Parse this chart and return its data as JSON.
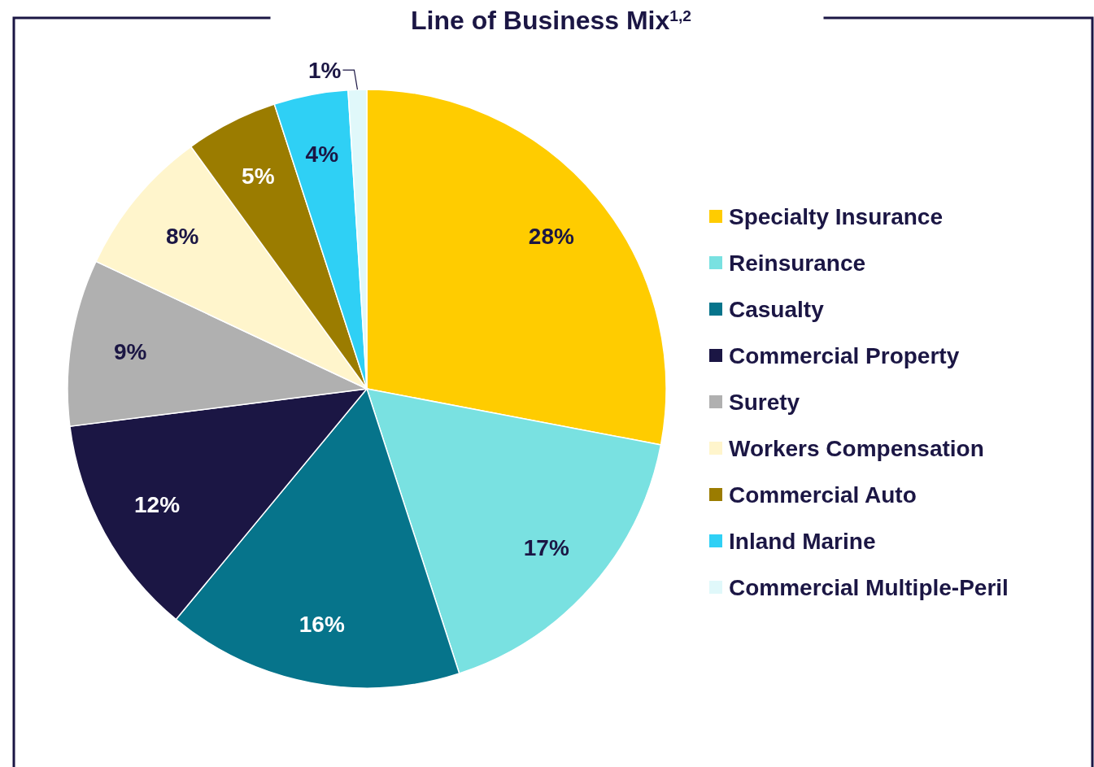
{
  "chart_data": {
    "type": "pie",
    "title": "Line of Business Mix$^{1,2}$",
    "categories": [
      "Specialty Insurance",
      "Reinsurance",
      "Casualty",
      "Commercial Property",
      "Surety",
      "Workers Compensation",
      "Commercial Auto",
      "Inland Marine",
      "Commercial Multiple-Peril"
    ],
    "values": [
      28,
      17,
      16,
      12,
      9,
      8,
      5,
      4,
      1
    ],
    "colors": [
      "#ffcc00",
      "#79e1e1",
      "#06748b",
      "#1b1644",
      "#b0b0b0",
      "#fff5cc",
      "#9b7c00",
      "#2fd0f5",
      "#e0f8fa"
    ],
    "value_labels": [
      "28%",
      "17%",
      "16%",
      "12%",
      "9%",
      "8%",
      "5%",
      "4%",
      "1%"
    ],
    "legend": "right"
  }
}
